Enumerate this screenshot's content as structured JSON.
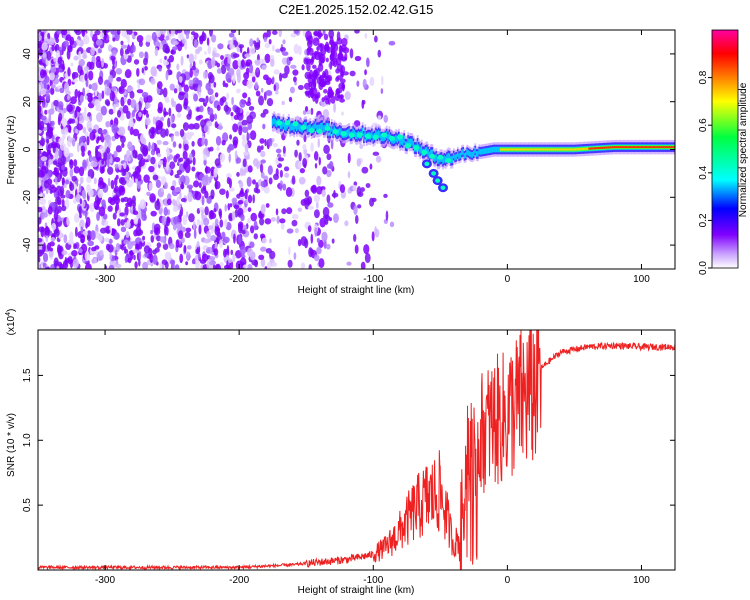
{
  "title": "C2E1.2025.152.02.42.G15",
  "chart_data": [
    {
      "type": "heatmap",
      "xlabel": "Height of straight line (km)",
      "ylabel": "Frequency (Hz)",
      "xlim": [
        -350,
        125
      ],
      "ylim": [
        -50,
        50
      ],
      "x_ticks": [
        -300,
        -200,
        -100,
        0,
        100
      ],
      "y_ticks": [
        -40,
        -20,
        0,
        20,
        40
      ],
      "colorbar": {
        "label": "Normalized spectral amplitude",
        "range": [
          0,
          1
        ],
        "ticks": [
          0.0,
          0.2,
          0.4,
          0.6,
          0.8
        ],
        "tick_labels": [
          "0.0",
          "0.2",
          "0.4",
          "0.6",
          "0.8"
        ],
        "colors": [
          "#ffffff",
          "#c8a0ff",
          "#8000ff",
          "#0000ff",
          "#00ffff",
          "#00ff40",
          "#ffff00",
          "#ff8000",
          "#ff0000",
          "#ff00a0"
        ]
      },
      "ridge": {
        "x": [
          -175,
          -160,
          -140,
          -120,
          -100,
          -85,
          -70,
          -55,
          -45,
          -35,
          -20,
          -10,
          0,
          20,
          50,
          80,
          100,
          125
        ],
        "y": [
          11,
          10,
          9,
          7,
          6,
          5,
          2,
          -3,
          -4,
          -2,
          -1,
          0,
          0,
          0,
          0,
          1,
          1,
          1
        ]
      },
      "noise_region": {
        "x_start": -350,
        "x_end": -100,
        "grid": false
      }
    },
    {
      "type": "line",
      "xlabel": "Height of straight line (km)",
      "ylabel": "SNR (10 * v/v)",
      "y_multiplier_label": "(x10",
      "y_multiplier_exp": "4",
      "y_multiplier_close": ")",
      "xlim": [
        -350,
        125
      ],
      "ylim": [
        0,
        1.85
      ],
      "x_ticks": [
        -300,
        -200,
        -100,
        0,
        100
      ],
      "y_ticks": [
        0.5,
        1.0,
        1.5
      ],
      "y_tick_labels": [
        "0.5",
        "1.0",
        "1.5"
      ],
      "color": "#ee2020",
      "series_envelope": {
        "x": [
          -350,
          -200,
          -160,
          -140,
          -120,
          -100,
          -90,
          -80,
          -70,
          -60,
          -50,
          -45,
          -40,
          -35,
          -30,
          -25,
          -20,
          -15,
          -10,
          -5,
          0,
          5,
          10,
          15,
          20,
          25,
          30,
          40,
          60,
          80,
          100,
          125
        ],
        "y": [
          0.02,
          0.02,
          0.04,
          0.06,
          0.08,
          0.12,
          0.18,
          0.3,
          0.45,
          0.55,
          0.6,
          0.4,
          0.2,
          0.25,
          0.9,
          1.0,
          1.05,
          1.1,
          1.15,
          1.15,
          1.2,
          1.25,
          1.3,
          1.35,
          1.4,
          1.55,
          1.6,
          1.68,
          1.72,
          1.73,
          1.72,
          1.72
        ]
      }
    }
  ]
}
